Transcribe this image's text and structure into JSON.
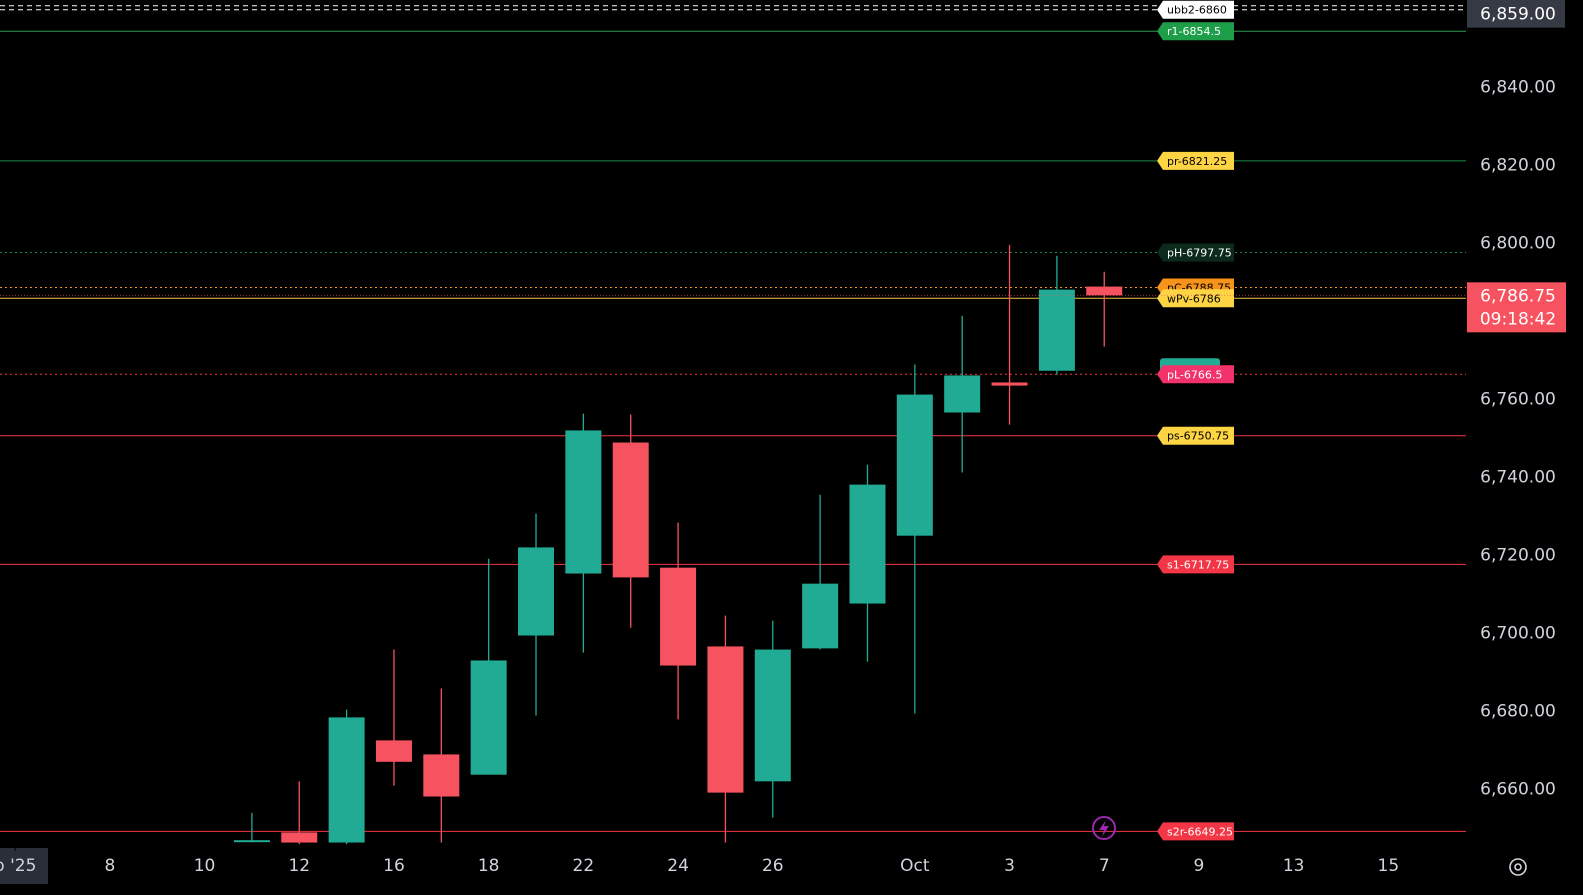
{
  "chart_data": {
    "type": "candlestick",
    "up_color": "#22ab94",
    "down_color": "#f7525f",
    "x": [
      0,
      1,
      2,
      3,
      4,
      5,
      6,
      7,
      8,
      9,
      10,
      11,
      12,
      13,
      14,
      15,
      16,
      17,
      18
    ],
    "open": [
      6646.5,
      6649.0,
      6646.4,
      6672.6,
      6669.0,
      6663.8,
      6699.5,
      6715.4,
      6749.0,
      6716.9,
      6696.7,
      6662.1,
      6696.2,
      6707.7,
      6725.1,
      6756.7,
      6764.4,
      6767.4,
      6789.0
    ],
    "high": [
      6654.0,
      6662.1,
      6680.5,
      6695.9,
      6685.9,
      6719.2,
      6730.8,
      6756.4,
      6756.2,
      6728.5,
      6704.6,
      6703.3,
      6735.6,
      6743.3,
      6769.0,
      6781.5,
      6799.7,
      6796.9,
      6792.8
    ],
    "low": [
      6646.5,
      6646.0,
      6646.0,
      6661.0,
      6646.4,
      6664.0,
      6679.0,
      6695.1,
      6701.5,
      6678.0,
      6646.4,
      6652.8,
      6695.9,
      6692.8,
      6679.5,
      6741.3,
      6753.6,
      6766.4,
      6773.6
    ],
    "close": [
      6647.0,
      6646.4,
      6678.5,
      6667.1,
      6658.2,
      6693.1,
      6722.1,
      6752.1,
      6714.4,
      6691.8,
      6659.2,
      6695.9,
      6712.8,
      6738.2,
      6761.3,
      6766.2,
      6763.6,
      6788.2,
      6786.75
    ],
    "xlim": [
      -5.32,
      25.64
    ],
    "xticks": [
      {
        "value": -5,
        "label": "p '25"
      },
      {
        "value": -3,
        "label": "8"
      },
      {
        "value": -1,
        "label": "10"
      },
      {
        "value": 1,
        "label": "12"
      },
      {
        "value": 3,
        "label": "16"
      },
      {
        "value": 5,
        "label": "18"
      },
      {
        "value": 7,
        "label": "22"
      },
      {
        "value": 9,
        "label": "24"
      },
      {
        "value": 11,
        "label": "26"
      },
      {
        "value": 14,
        "label": "Oct"
      },
      {
        "value": 16,
        "label": "3"
      },
      {
        "value": 18,
        "label": "7"
      },
      {
        "value": 20,
        "label": "9"
      },
      {
        "value": 22,
        "label": "13"
      },
      {
        "value": 24,
        "label": "15"
      }
    ],
    "ylim": [
      6645,
      6862.5
    ],
    "yticks": [
      {
        "value": 6660,
        "label": "6,660.00"
      },
      {
        "value": 6680,
        "label": "6,680.00"
      },
      {
        "value": 6700,
        "label": "6,700.00"
      },
      {
        "value": 6720,
        "label": "6,720.00"
      },
      {
        "value": 6740,
        "label": "6,740.00"
      },
      {
        "value": 6760,
        "label": "6,760.00"
      },
      {
        "value": 6800,
        "label": "6,800.00"
      },
      {
        "value": 6820,
        "label": "6,820.00"
      },
      {
        "value": 6840,
        "label": "6,840.00"
      }
    ],
    "levels": [
      {
        "label": "ubb2-6860",
        "value": 6860,
        "line": "#ffffff",
        "bg": "#ffffff",
        "fg": "#000000",
        "style": "dashed"
      },
      {
        "label": "r1-6854.5",
        "value": 6854.5,
        "line": "#2e9e4f",
        "bg": "#1e9e49",
        "fg": "#ffffff",
        "style": "solid"
      },
      {
        "label": "pr-6821.25",
        "value": 6821.25,
        "line": "#1e8a4a",
        "bg": "#fdd443",
        "fg": "#000000",
        "style": "solid"
      },
      {
        "label": "pH-6797.75",
        "value": 6797.75,
        "line": "#1e8a4a",
        "bg": "#0c2a1c",
        "fg": "#ffffff",
        "style": "dotted"
      },
      {
        "label": "pC-6788.75",
        "value": 6788.75,
        "line": "#f7931a",
        "bg": "#f7931a",
        "fg": "#000000",
        "style": "dotted"
      },
      {
        "label": "wPv-6786",
        "value": 6786,
        "line": "#f5c242",
        "bg": "#fdd443",
        "fg": "#000000",
        "style": "solid"
      },
      {
        "label": "pL-6766.5",
        "value": 6766.5,
        "line": "#f23645",
        "bg": "#f2336b",
        "fg": "#ffffff",
        "style": "dotted"
      },
      {
        "label": "ps-6750.75",
        "value": 6750.75,
        "line": "#f23645",
        "bg": "#fdd443",
        "fg": "#000000",
        "style": "solid"
      },
      {
        "label": "s1-6717.75",
        "value": 6717.75,
        "line": "#f23645",
        "bg": "#f23645",
        "fg": "#ffffff",
        "style": "solid"
      },
      {
        "label": "s2r-6649.25",
        "value": 6649.25,
        "line": "#f23645",
        "bg": "#f23645",
        "fg": "#ffffff",
        "style": "solid"
      }
    ],
    "price_marker": {
      "value": 6859,
      "label": "6,859.00"
    },
    "last_price": {
      "value": 6786.75,
      "label": "6,786.75",
      "countdown": "09:18:42"
    }
  }
}
